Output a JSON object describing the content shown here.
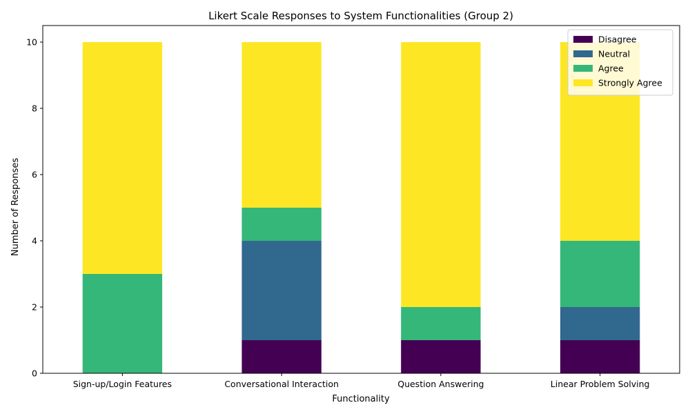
{
  "chart_data": {
    "type": "bar",
    "stacked": true,
    "title": "Likert Scale Responses to System Functionalities (Group 2)",
    "xlabel": "Functionality",
    "ylabel": "Number of Responses",
    "categories": [
      "Sign-up/Login Features",
      "Conversational Interaction",
      "Question Answering",
      "Linear Problem Solving"
    ],
    "ylim": [
      0,
      10.5
    ],
    "yticks": [
      0,
      2,
      4,
      6,
      8,
      10
    ],
    "grid": false,
    "legend_position": "top-right",
    "series": [
      {
        "name": "Disagree",
        "color": "#440154",
        "values": [
          0,
          1,
          1,
          1
        ]
      },
      {
        "name": "Neutral",
        "color": "#31688e",
        "values": [
          0,
          3,
          0,
          1
        ]
      },
      {
        "name": "Agree",
        "color": "#35b779",
        "values": [
          3,
          1,
          1,
          2
        ]
      },
      {
        "name": "Strongly Agree",
        "color": "#fde725",
        "values": [
          7,
          5,
          8,
          6
        ]
      }
    ]
  }
}
